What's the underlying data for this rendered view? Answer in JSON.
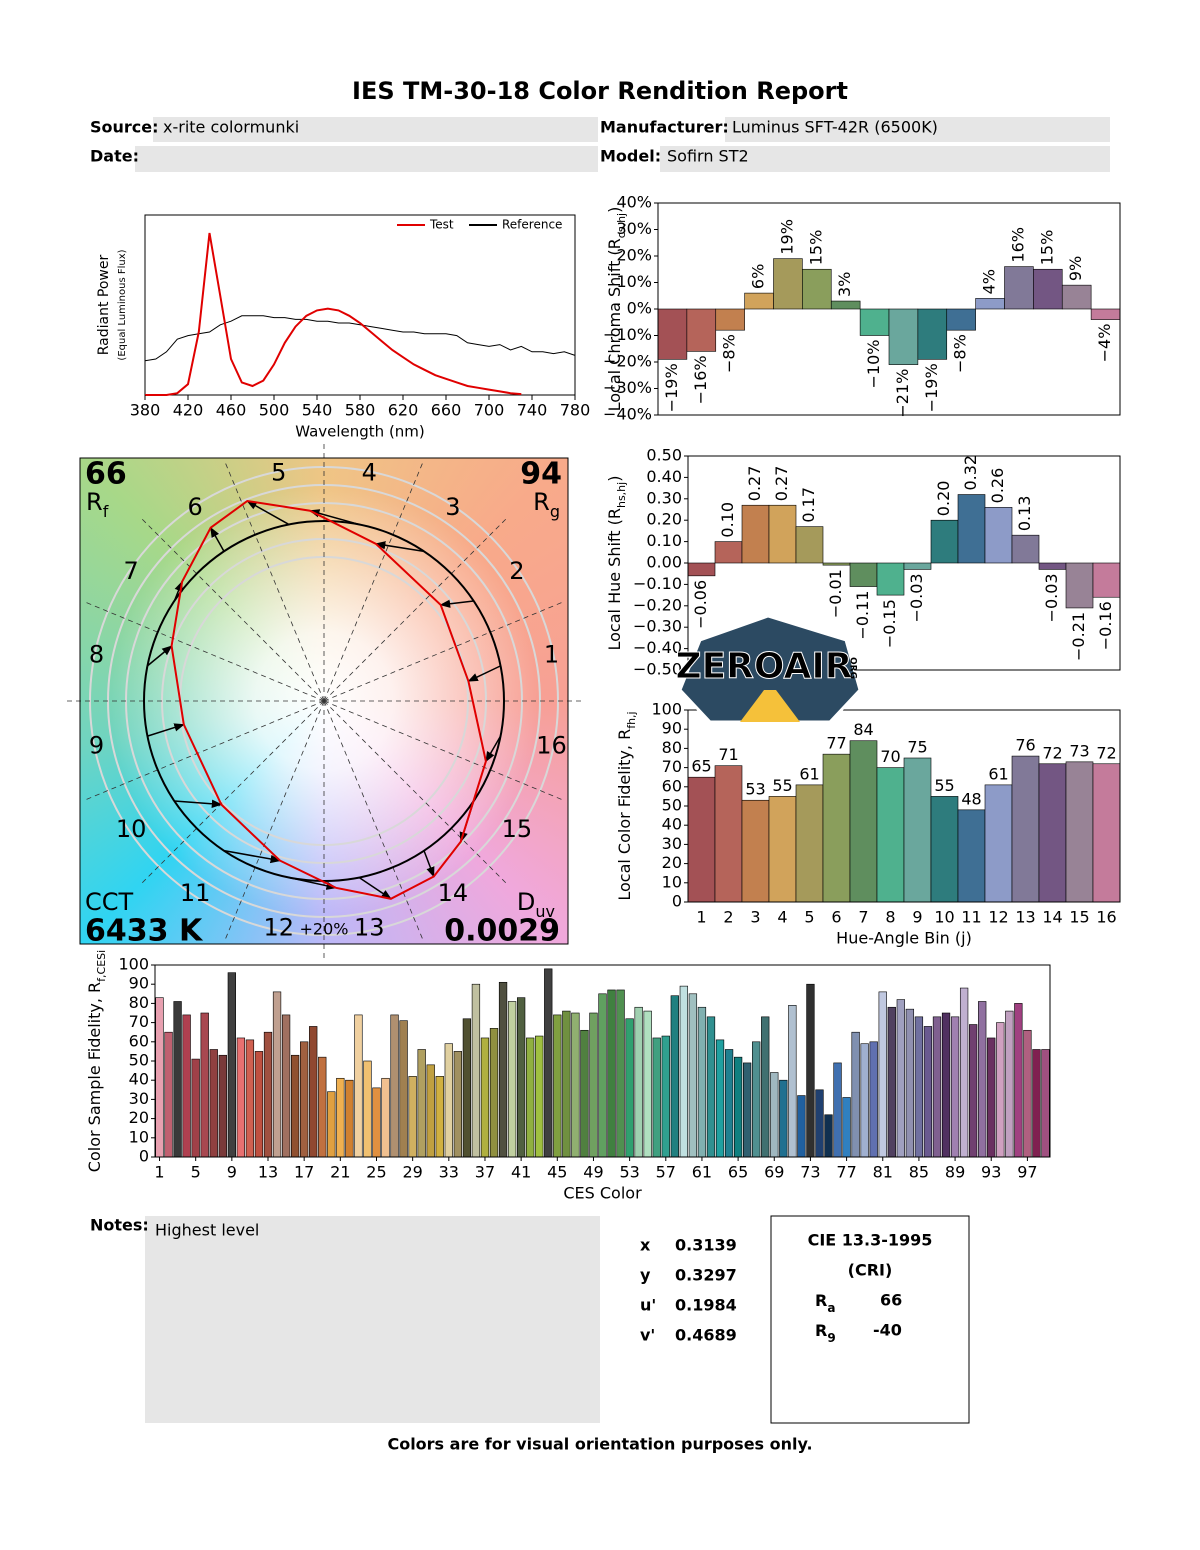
{
  "title": "IES TM-30-18 Color Rendition Report",
  "fields": [
    {
      "label": "Source:",
      "value": "x-rite colormunki"
    },
    {
      "label": "Manufacturer:",
      "value": "Luminus SFT-42R (6500K)"
    },
    {
      "label": "Date:"
    },
    {
      "label": "Model:",
      "value": "Sofirn ST2"
    }
  ],
  "chart_data": [
    {
      "type": "line",
      "xlabel": "Wavelength (nm)",
      "ylabel": [
        "Radiant Power",
        "(Equal Luminous Flux)"
      ],
      "x": [
        380,
        390,
        400,
        410,
        420,
        430,
        440,
        450,
        460,
        470,
        480,
        490,
        500,
        510,
        520,
        530,
        540,
        550,
        560,
        570,
        580,
        590,
        600,
        610,
        620,
        630,
        640,
        650,
        660,
        670,
        680,
        690,
        700,
        710,
        720,
        730,
        740,
        750,
        760,
        770,
        780
      ],
      "series": [
        {
          "name": "Test",
          "color": "#e00000",
          "values": [
            0,
            0,
            0,
            0.01,
            0.06,
            0.35,
            0.9,
            0.55,
            0.2,
            0.07,
            0.05,
            0.08,
            0.17,
            0.29,
            0.38,
            0.44,
            0.47,
            0.48,
            0.47,
            0.44,
            0.4,
            0.35,
            0.3,
            0.25,
            0.21,
            0.17,
            0.14,
            0.11,
            0.09,
            0.07,
            0.05,
            0.04,
            0.03,
            0.02,
            0.01,
            0.005,
            null,
            null,
            null,
            null,
            null
          ]
        },
        {
          "name": "Reference",
          "color": "#000000",
          "values": [
            0.19,
            0.2,
            0.24,
            0.31,
            0.33,
            0.34,
            0.35,
            0.39,
            0.41,
            0.44,
            0.44,
            0.44,
            0.43,
            0.43,
            0.42,
            0.42,
            0.41,
            0.41,
            0.4,
            0.4,
            0.39,
            0.38,
            0.37,
            0.36,
            0.35,
            0.35,
            0.34,
            0.34,
            0.34,
            0.33,
            0.29,
            0.28,
            0.27,
            0.28,
            0.25,
            0.27,
            0.24,
            0.24,
            0.23,
            0.24,
            0.22
          ]
        }
      ],
      "xlim": [
        380,
        780
      ],
      "xticks": [
        380,
        420,
        460,
        500,
        540,
        580,
        620,
        660,
        700,
        740,
        780
      ],
      "ylim": [
        0,
        1
      ],
      "legend": "upper right"
    },
    {
      "type": "bar",
      "ylabel": [
        "Local Chroma Shift (R",
        "cs,hj",
        ")"
      ],
      "values": [
        -19,
        -16,
        -8,
        6,
        19,
        15,
        3,
        -10,
        -21,
        -19,
        -8,
        4,
        16,
        15,
        9,
        -4
      ],
      "value_labels": [
        "−19%",
        "−16%",
        "−8%",
        "6%",
        "19%",
        "15%",
        "3%",
        "−10%",
        "−21%",
        "−19%",
        "−8%",
        "4%",
        "16%",
        "15%",
        "9%",
        "−4%"
      ],
      "colors": [
        "#a35155",
        "#b5645a",
        "#c2804f",
        "#d1a35b",
        "#a59a5b",
        "#8a9e5c",
        "#5f8e5e",
        "#4fb18e",
        "#6aa79d",
        "#2e7c7d",
        "#3f6f94",
        "#8d9bc8",
        "#817998",
        "#735683",
        "#988396",
        "#c47b9b"
      ],
      "ylim": [
        -40,
        40
      ],
      "yticks": [
        {
          "value": 40,
          "label": "40%"
        },
        {
          "value": 30,
          "label": "30%"
        },
        {
          "value": 20,
          "label": "20%"
        },
        {
          "value": 10,
          "label": "10%"
        },
        {
          "value": 0,
          "label": "0%"
        },
        {
          "value": -10,
          "label": "−10%"
        },
        {
          "value": -20,
          "label": "−20%"
        },
        {
          "value": -30,
          "label": "−30%"
        },
        {
          "value": -40,
          "label": "−40%"
        }
      ]
    },
    {
      "type": "bar",
      "ylabel": [
        "Local Hue Shift (R",
        "hs,hj",
        ")"
      ],
      "values": [
        -0.06,
        0.1,
        0.27,
        0.27,
        0.17,
        -0.01,
        -0.11,
        -0.15,
        -0.03,
        0.2,
        0.32,
        0.26,
        0.13,
        -0.03,
        -0.21,
        -0.16
      ],
      "value_labels": [
        "−0.06",
        "0.10",
        "0.27",
        "0.27",
        "0.17",
        "−0.01",
        "−0.11",
        "−0.15",
        "−0.03",
        "0.20",
        "0.32",
        "0.26",
        "0.13",
        "−0.03",
        "−0.21",
        "−0.16"
      ],
      "colors": [
        "#a35155",
        "#b5645a",
        "#c2804f",
        "#d1a35b",
        "#a59a5b",
        "#8a9e5c",
        "#5f8e5e",
        "#4fb18e",
        "#6aa79d",
        "#2e7c7d",
        "#3f6f94",
        "#8d9bc8",
        "#817998",
        "#735683",
        "#988396",
        "#c47b9b"
      ],
      "ylim": [
        -0.5,
        0.5
      ],
      "yticks": [
        {
          "value": 0.5,
          "label": "0.50"
        },
        {
          "value": 0.4,
          "label": "0.40"
        },
        {
          "value": 0.3,
          "label": "0.30"
        },
        {
          "value": 0.2,
          "label": "0.20"
        },
        {
          "value": 0.1,
          "label": "0.10"
        },
        {
          "value": 0,
          "label": "0.00"
        },
        {
          "value": -0.1,
          "label": "−0.10"
        },
        {
          "value": -0.2,
          "label": "−0.20"
        },
        {
          "value": -0.3,
          "label": "−0.30"
        },
        {
          "value": -0.4,
          "label": "−0.40"
        },
        {
          "value": -0.5,
          "label": "−0.50"
        }
      ]
    },
    {
      "type": "bar",
      "ylabel": [
        "Local Color Fidelity, R",
        "fh,j"
      ],
      "xlabel": "Hue-Angle Bin (j)",
      "categories": [
        1,
        2,
        3,
        4,
        5,
        6,
        7,
        8,
        9,
        10,
        11,
        12,
        13,
        14,
        15,
        16
      ],
      "values": [
        65,
        71,
        53,
        55,
        61,
        77,
        84,
        70,
        75,
        55,
        48,
        61,
        76,
        72,
        73,
        72
      ],
      "colors": [
        "#a35155",
        "#b5645a",
        "#c2804f",
        "#d1a35b",
        "#a59a5b",
        "#8a9e5c",
        "#5f8e5e",
        "#4fb18e",
        "#6aa79d",
        "#2e7c7d",
        "#3f6f94",
        "#8d9bc8",
        "#817998",
        "#735683",
        "#988396",
        "#c47b9b"
      ],
      "ylim": [
        0,
        100
      ],
      "yticks": [
        0,
        10,
        20,
        30,
        40,
        50,
        60,
        70,
        80,
        90,
        100
      ]
    },
    {
      "type": "bar",
      "ylabel": [
        "Color Sample Fidelity, R",
        "f,CESi"
      ],
      "xlabel": "CES Color",
      "values": [
        83,
        65,
        81,
        74,
        51,
        75,
        56,
        53,
        96,
        62,
        61,
        55,
        65,
        86,
        74,
        53,
        60,
        68,
        52,
        34,
        41,
        40,
        74,
        50,
        36,
        41,
        74,
        71,
        42,
        56,
        48,
        42,
        59,
        55,
        72,
        90,
        62,
        67,
        91,
        81,
        83,
        62,
        63,
        98,
        74,
        76,
        75,
        66,
        75,
        85,
        87,
        87,
        72,
        78,
        76,
        62,
        63,
        84,
        89,
        85,
        78,
        73,
        61,
        56,
        52,
        49,
        60,
        73,
        44,
        40,
        79,
        32,
        90,
        35,
        22,
        49,
        31,
        65,
        59,
        60,
        86,
        78,
        82,
        77,
        73,
        68,
        73,
        75,
        73,
        88,
        69,
        81,
        62,
        70,
        76,
        80,
        66,
        56,
        56
      ],
      "colors": [
        "#e8a0b0",
        "#c06070",
        "#3a3a3a",
        "#b04050",
        "#a04048",
        "#a84850",
        "#904040",
        "#7a3a3a",
        "#404040",
        "#e87070",
        "#d06050",
        "#c05040",
        "#a05040",
        "#c0a090",
        "#a07060",
        "#905030",
        "#a06040",
        "#904830",
        "#c07040",
        "#e0a040",
        "#f0b050",
        "#d08030",
        "#f0d0a0",
        "#f0c070",
        "#e09040",
        "#f0c090",
        "#b09070",
        "#a08050",
        "#d0b060",
        "#b0a060",
        "#c0a040",
        "#d0b040",
        "#e0d0a0",
        "#a09060",
        "#505030",
        "#c0c0a0",
        "#b0b040",
        "#909040",
        "#505040",
        "#c0d0a0",
        "#506040",
        "#90b040",
        "#a0c040",
        "#404040",
        "#80a040",
        "#709040",
        "#90b070",
        "#508040",
        "#70a060",
        "#60a060",
        "#408040",
        "#509050",
        "#30a070",
        "#a0d0b0",
        "#b0e0c0",
        "#40a080",
        "#30a090",
        "#208080",
        "#c0e0e0",
        "#a0c0c0",
        "#80b0b0",
        "#309090",
        "#20a0a0",
        "#208090",
        "#108080",
        "#306070",
        "#509090",
        "#407070",
        "#a0b8c0",
        "#207090",
        "#b0c0d0",
        "#2060a0",
        "#303030",
        "#204070",
        "#103050",
        "#4070b0",
        "#3080c0",
        "#8090b0",
        "#a0b0d0",
        "#6070b0",
        "#c0c8e0",
        "#504060",
        "#a0a0c0",
        "#9090b0",
        "#7070a0",
        "#6a5a90",
        "#806090",
        "#503060",
        "#a080b0",
        "#c0b0d0",
        "#704070",
        "#9070a0",
        "#6a3060",
        "#d0a0c0",
        "#c0a0c0",
        "#a04080",
        "#b06080",
        "#802050",
        "#a05080"
      ],
      "xlim": [
        0.5,
        99.5
      ],
      "xticks": [
        1,
        5,
        9,
        13,
        17,
        21,
        25,
        29,
        33,
        37,
        41,
        45,
        49,
        53,
        57,
        61,
        65,
        69,
        73,
        77,
        81,
        85,
        89,
        93,
        97
      ],
      "ylim": [
        0,
        100
      ],
      "yticks": [
        0,
        10,
        20,
        30,
        40,
        50,
        60,
        70,
        80,
        90,
        100
      ]
    },
    {
      "type": "vector",
      "bin_labels": [
        1,
        2,
        3,
        4,
        5,
        6,
        7,
        8,
        9,
        10,
        11,
        12,
        13,
        14,
        15,
        16
      ],
      "rf": 66,
      "rf_label": [
        "R",
        "f"
      ],
      "rg": 94,
      "rg_label": [
        "R",
        "g"
      ],
      "cct_label": "CCT",
      "cct": {
        "value": 6433,
        "label": "6433 K"
      },
      "duv_label": [
        "D",
        "uv"
      ],
      "duv": 0.0029,
      "ring_label": "+20%"
    }
  ],
  "notes": {
    "label": "Notes:",
    "text": "Highest level"
  },
  "chromaticity": [
    {
      "label": "x",
      "value": 0.3139
    },
    {
      "label": "y",
      "value": 0.3297
    },
    {
      "label": "u'",
      "value": 0.1984
    },
    {
      "label": "v'",
      "value": 0.4689
    }
  ],
  "cri": {
    "title": "CIE 13.3-1995",
    "subtitle": "(CRI)",
    "ra_label": [
      "R",
      "a"
    ],
    "ra": 66,
    "r9_label": [
      "R",
      "9"
    ],
    "r9": -40
  },
  "logo": {
    "name": "ZEROAIR",
    "suffix": "ORG"
  },
  "footer": "Colors are for visual orientation purposes only."
}
